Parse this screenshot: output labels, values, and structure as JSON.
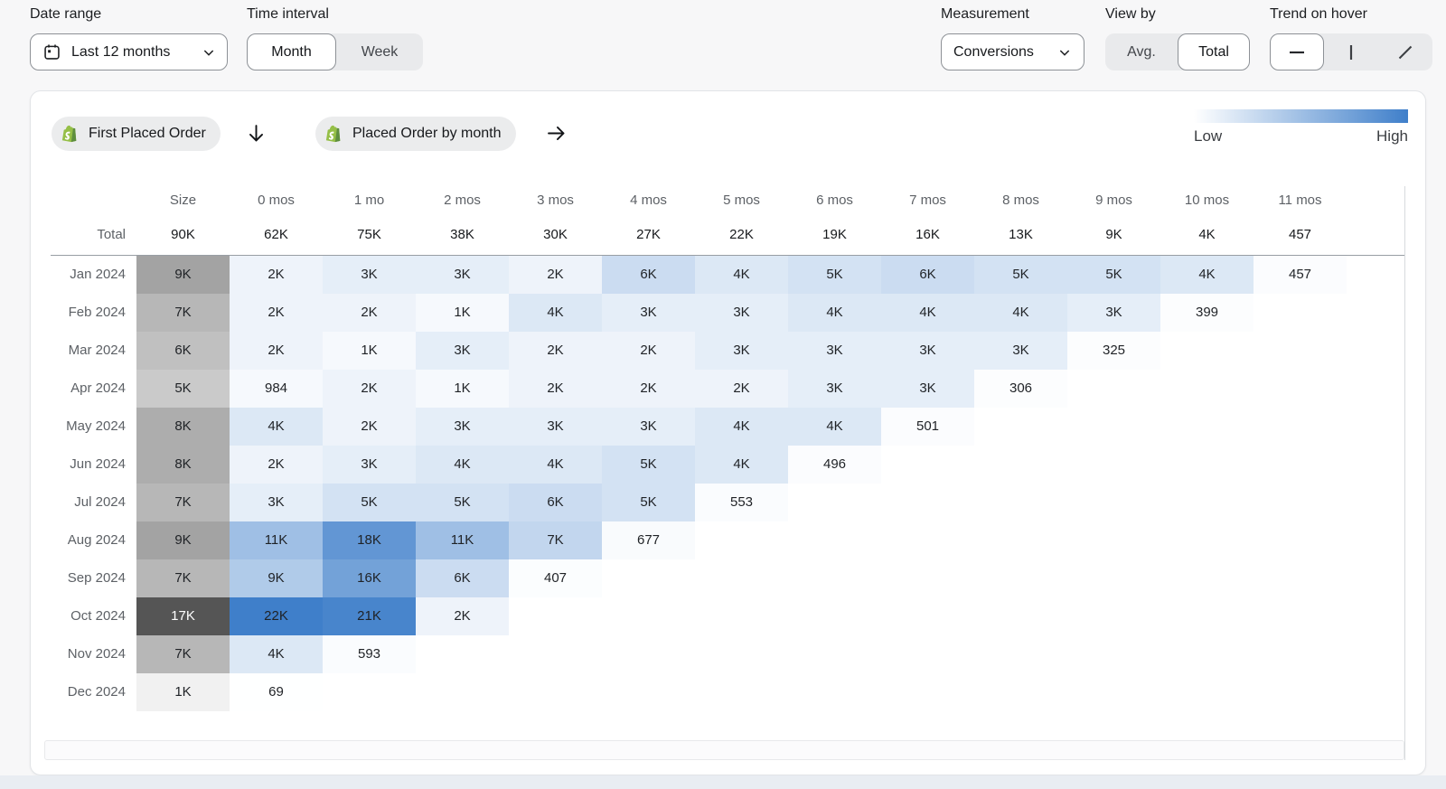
{
  "page": {
    "background": "#f7f7f8",
    "bottom_strip": "#e9edf2"
  },
  "toolbar": {
    "date_range": {
      "label": "Date range",
      "value": "Last 12 months",
      "icon": "calendar-icon"
    },
    "time_interval": {
      "label": "Time interval",
      "options": [
        "Month",
        "Week"
      ],
      "selected": "Month"
    },
    "measurement": {
      "label": "Measurement",
      "value": "Conversions"
    },
    "view_by": {
      "label": "View by",
      "options": [
        "Avg.",
        "Total"
      ],
      "selected": "Total"
    },
    "trend_on_hover": {
      "label": "Trend on hover",
      "options": [
        "horizontal-line-icon",
        "vertical-line-icon",
        "diagonal-line-icon"
      ],
      "selected": "horizontal-line-icon"
    }
  },
  "panel": {
    "source_event": {
      "label": "First Placed Order",
      "icon": "shopify-icon",
      "arrow_icon": "arrow-down-icon"
    },
    "return_event": {
      "label": "Placed Order by month",
      "icon": "shopify-icon",
      "arrow_icon": "arrow-right-icon"
    },
    "legend": {
      "low_label": "Low",
      "high_label": "High"
    }
  },
  "chart_data": {
    "type": "heatmap",
    "columns": [
      "Size",
      "0 mos",
      "1 mo",
      "2 mos",
      "3 mos",
      "4 mos",
      "5 mos",
      "6 mos",
      "7 mos",
      "8 mos",
      "9 mos",
      "10 mos",
      "11 mos"
    ],
    "total_row": {
      "label": "Total",
      "values": [
        "90K",
        "62K",
        "75K",
        "38K",
        "30K",
        "27K",
        "22K",
        "19K",
        "16K",
        "13K",
        "9K",
        "4K",
        "457"
      ]
    },
    "rows": [
      {
        "label": "Jan 2024",
        "size": [
          "9K",
          9000
        ],
        "cells": [
          [
            "2K",
            2000
          ],
          [
            "3K",
            3000
          ],
          [
            "3K",
            3000
          ],
          [
            "2K",
            2000
          ],
          [
            "6K",
            6000
          ],
          [
            "4K",
            4000
          ],
          [
            "5K",
            5000
          ],
          [
            "6K",
            6000
          ],
          [
            "5K",
            5000
          ],
          [
            "5K",
            5000
          ],
          [
            "4K",
            4000
          ],
          [
            "457",
            457
          ]
        ]
      },
      {
        "label": "Feb 2024",
        "size": [
          "7K",
          7000
        ],
        "cells": [
          [
            "2K",
            2000
          ],
          [
            "2K",
            2000
          ],
          [
            "1K",
            1000
          ],
          [
            "4K",
            4000
          ],
          [
            "3K",
            3000
          ],
          [
            "3K",
            3000
          ],
          [
            "4K",
            4000
          ],
          [
            "4K",
            4000
          ],
          [
            "4K",
            4000
          ],
          [
            "3K",
            3000
          ],
          [
            "399",
            399
          ]
        ]
      },
      {
        "label": "Mar 2024",
        "size": [
          "6K",
          6000
        ],
        "cells": [
          [
            "2K",
            2000
          ],
          [
            "1K",
            1000
          ],
          [
            "3K",
            3000
          ],
          [
            "2K",
            2000
          ],
          [
            "2K",
            2000
          ],
          [
            "3K",
            3000
          ],
          [
            "3K",
            3000
          ],
          [
            "3K",
            3000
          ],
          [
            "3K",
            3000
          ],
          [
            "325",
            325
          ]
        ]
      },
      {
        "label": "Apr 2024",
        "size": [
          "5K",
          5000
        ],
        "cells": [
          [
            "984",
            984
          ],
          [
            "2K",
            2000
          ],
          [
            "1K",
            1000
          ],
          [
            "2K",
            2000
          ],
          [
            "2K",
            2000
          ],
          [
            "2K",
            2000
          ],
          [
            "3K",
            3000
          ],
          [
            "3K",
            3000
          ],
          [
            "306",
            306
          ]
        ]
      },
      {
        "label": "May 2024",
        "size": [
          "8K",
          8000
        ],
        "cells": [
          [
            "4K",
            4000
          ],
          [
            "2K",
            2000
          ],
          [
            "3K",
            3000
          ],
          [
            "3K",
            3000
          ],
          [
            "3K",
            3000
          ],
          [
            "4K",
            4000
          ],
          [
            "4K",
            4000
          ],
          [
            "501",
            501
          ]
        ]
      },
      {
        "label": "Jun 2024",
        "size": [
          "8K",
          8000
        ],
        "cells": [
          [
            "2K",
            2000
          ],
          [
            "3K",
            3000
          ],
          [
            "4K",
            4000
          ],
          [
            "4K",
            4000
          ],
          [
            "5K",
            5000
          ],
          [
            "4K",
            4000
          ],
          [
            "496",
            496
          ]
        ]
      },
      {
        "label": "Jul 2024",
        "size": [
          "7K",
          7000
        ],
        "cells": [
          [
            "3K",
            3000
          ],
          [
            "5K",
            5000
          ],
          [
            "5K",
            5000
          ],
          [
            "6K",
            6000
          ],
          [
            "5K",
            5000
          ],
          [
            "553",
            553
          ]
        ]
      },
      {
        "label": "Aug 2024",
        "size": [
          "9K",
          9000
        ],
        "cells": [
          [
            "11K",
            11000
          ],
          [
            "18K",
            18000
          ],
          [
            "11K",
            11000
          ],
          [
            "7K",
            7000
          ],
          [
            "677",
            677
          ]
        ]
      },
      {
        "label": "Sep 2024",
        "size": [
          "7K",
          7000
        ],
        "cells": [
          [
            "9K",
            9000
          ],
          [
            "16K",
            16000
          ],
          [
            "6K",
            6000
          ],
          [
            "407",
            407
          ]
        ]
      },
      {
        "label": "Oct 2024",
        "size": [
          "17K",
          17000
        ],
        "cells": [
          [
            "22K",
            22000
          ],
          [
            "21K",
            21000
          ],
          [
            "2K",
            2000
          ]
        ]
      },
      {
        "label": "Nov 2024",
        "size": [
          "7K",
          7000
        ],
        "cells": [
          [
            "4K",
            4000
          ],
          [
            "593",
            593
          ]
        ]
      },
      {
        "label": "Dec 2024",
        "size": [
          "1K",
          1000
        ],
        "cells": [
          [
            "69",
            69
          ]
        ]
      }
    ],
    "color_scale": {
      "cell_low": "#FFFFFF",
      "cell_high": "#3F7FCA",
      "cell_max": 22000,
      "size_low": "#FBFBFB",
      "size_high": "#555555",
      "size_max": 17000,
      "white_text_threshold": 0.8
    }
  }
}
